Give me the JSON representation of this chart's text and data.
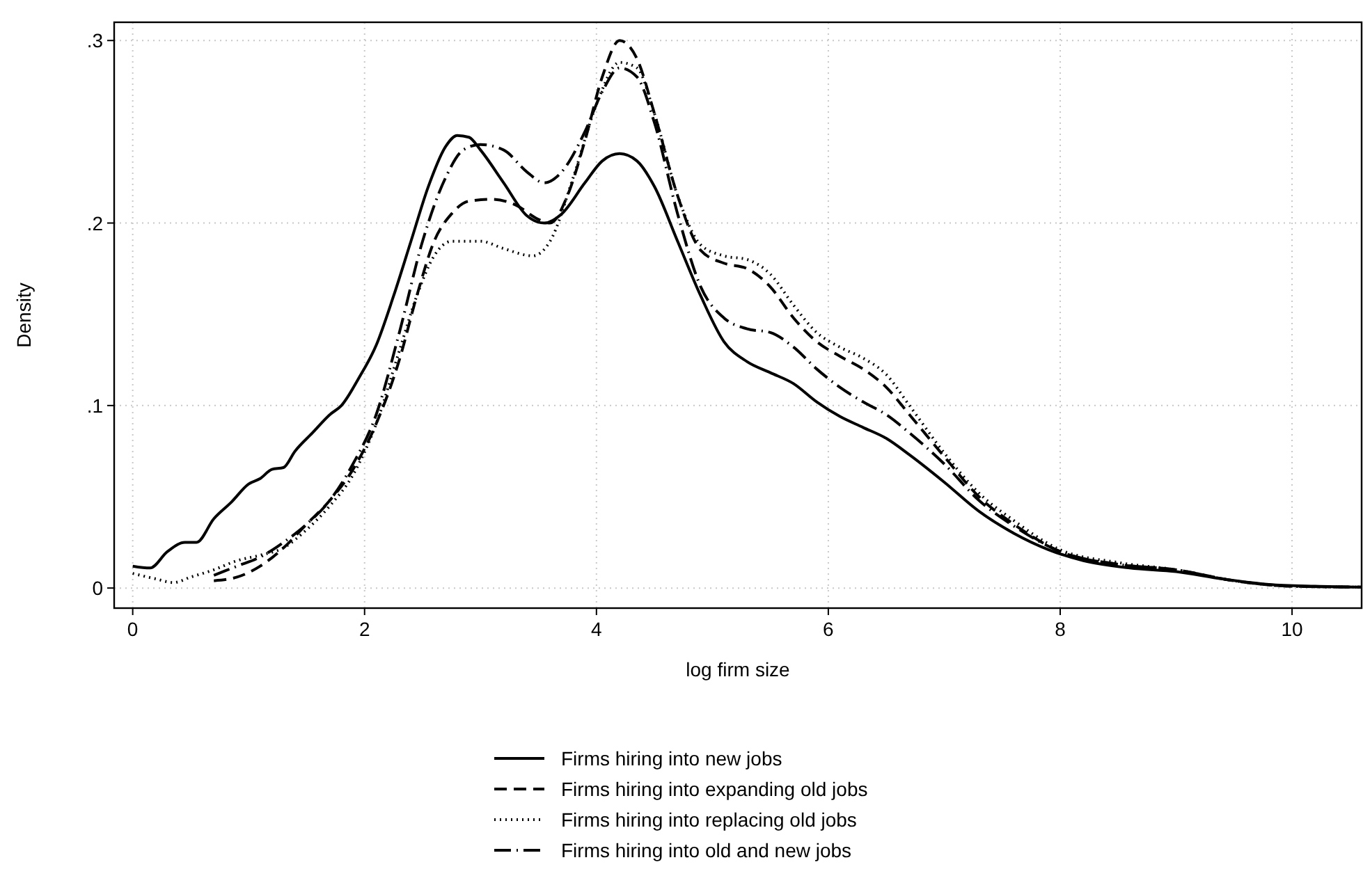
{
  "chart_data": {
    "type": "line",
    "xlabel": "log firm size",
    "ylabel": "Density",
    "xlim": [
      -0.16,
      10.6
    ],
    "ylim": [
      -0.011,
      0.31
    ],
    "xticks": [
      0,
      2,
      4,
      6,
      8,
      10
    ],
    "yticks": [
      0,
      {
        "value": 0.1,
        "label": ".1"
      },
      {
        "value": 0.2,
        "label": ".2"
      },
      {
        "value": 0.3,
        "label": ".3"
      }
    ],
    "grid": true,
    "legend": "bottom",
    "series": [
      {
        "name": "Firms hiring into new jobs",
        "color": "#000000",
        "line_style": "solid",
        "x": [
          0,
          0.15,
          0.3,
          0.45,
          0.55,
          0.7,
          0.85,
          1.0,
          1.1,
          1.2,
          1.3,
          1.4,
          1.55,
          1.7,
          1.8,
          1.95,
          2.1,
          2.25,
          2.4,
          2.55,
          2.7,
          2.8,
          2.9,
          3.0,
          3.2,
          3.4,
          3.55,
          3.7,
          3.9,
          4.05,
          4.2,
          4.35,
          4.5,
          4.7,
          4.9,
          5.1,
          5.3,
          5.5,
          5.7,
          5.9,
          6.1,
          6.3,
          6.5,
          6.7,
          7.0,
          7.3,
          7.6,
          7.9,
          8.2,
          8.6,
          9.0,
          9.4,
          9.8,
          10.2,
          10.6
        ],
        "values": [
          0.012,
          0.011,
          0.02,
          0.025,
          0.025,
          0.038,
          0.047,
          0.057,
          0.06,
          0.065,
          0.066,
          0.075,
          0.085,
          0.095,
          0.1,
          0.115,
          0.133,
          0.16,
          0.19,
          0.22,
          0.242,
          0.248,
          0.247,
          0.24,
          0.222,
          0.204,
          0.2,
          0.205,
          0.222,
          0.234,
          0.238,
          0.234,
          0.22,
          0.19,
          0.16,
          0.135,
          0.124,
          0.118,
          0.112,
          0.102,
          0.094,
          0.088,
          0.082,
          0.073,
          0.058,
          0.042,
          0.03,
          0.021,
          0.015,
          0.011,
          0.009,
          0.005,
          0.002,
          0.001,
          0.0005
        ]
      },
      {
        "name": "Firms hiring into expanding old jobs",
        "color": "#000000",
        "line_style": "dashed",
        "x": [
          0.7,
          0.9,
          1.1,
          1.3,
          1.5,
          1.7,
          1.9,
          2.1,
          2.3,
          2.45,
          2.6,
          2.75,
          2.9,
          3.1,
          3.3,
          3.5,
          3.6,
          3.75,
          3.9,
          4.05,
          4.2,
          4.35,
          4.5,
          4.7,
          4.9,
          5.1,
          5.3,
          5.5,
          5.7,
          5.9,
          6.1,
          6.3,
          6.5,
          6.7,
          7.0,
          7.3,
          7.6,
          8.0,
          8.5,
          9.0,
          9.5,
          10.0,
          10.6
        ],
        "values": [
          0.004,
          0.006,
          0.012,
          0.022,
          0.035,
          0.048,
          0.065,
          0.09,
          0.125,
          0.16,
          0.19,
          0.205,
          0.212,
          0.213,
          0.21,
          0.202,
          0.2,
          0.215,
          0.245,
          0.28,
          0.3,
          0.29,
          0.26,
          0.215,
          0.185,
          0.178,
          0.175,
          0.165,
          0.148,
          0.135,
          0.127,
          0.12,
          0.11,
          0.095,
          0.072,
          0.05,
          0.035,
          0.02,
          0.013,
          0.01,
          0.004,
          0.001,
          0.0005
        ]
      },
      {
        "name": "Firms hiring into replacing old jobs",
        "color": "#000000",
        "line_style": "dotted",
        "x": [
          0,
          0.2,
          0.35,
          0.5,
          0.7,
          0.9,
          1.1,
          1.3,
          1.5,
          1.7,
          1.9,
          2.1,
          2.3,
          2.45,
          2.6,
          2.75,
          3.0,
          3.2,
          3.45,
          3.6,
          3.8,
          4.0,
          4.2,
          4.35,
          4.5,
          4.7,
          4.9,
          5.1,
          5.3,
          5.5,
          5.7,
          5.9,
          6.1,
          6.3,
          6.5,
          6.7,
          7.0,
          7.3,
          7.6,
          8.0,
          8.5,
          9.0,
          9.5,
          10.0,
          10.6
        ],
        "values": [
          0.008,
          0.005,
          0.003,
          0.006,
          0.01,
          0.015,
          0.018,
          0.022,
          0.032,
          0.045,
          0.062,
          0.09,
          0.13,
          0.16,
          0.182,
          0.19,
          0.19,
          0.186,
          0.182,
          0.19,
          0.225,
          0.265,
          0.288,
          0.285,
          0.26,
          0.215,
          0.188,
          0.182,
          0.18,
          0.172,
          0.155,
          0.14,
          0.132,
          0.126,
          0.117,
          0.1,
          0.074,
          0.052,
          0.037,
          0.021,
          0.014,
          0.01,
          0.004,
          0.001,
          0.0005
        ]
      },
      {
        "name": "Firms hiring into old and new jobs",
        "color": "#000000",
        "line_style": "dashdot",
        "x": [
          0.7,
          0.9,
          1.1,
          1.3,
          1.5,
          1.7,
          1.9,
          2.1,
          2.3,
          2.5,
          2.7,
          2.85,
          3.0,
          3.2,
          3.4,
          3.55,
          3.7,
          3.9,
          4.05,
          4.2,
          4.35,
          4.5,
          4.7,
          4.9,
          5.1,
          5.3,
          5.5,
          5.7,
          5.9,
          6.1,
          6.3,
          6.5,
          6.7,
          7.0,
          7.3,
          7.6,
          8.0,
          8.5,
          9.0,
          9.5,
          10.0,
          10.6
        ],
        "values": [
          0.007,
          0.012,
          0.017,
          0.025,
          0.035,
          0.048,
          0.068,
          0.095,
          0.14,
          0.19,
          0.225,
          0.24,
          0.243,
          0.24,
          0.228,
          0.222,
          0.228,
          0.25,
          0.272,
          0.285,
          0.28,
          0.255,
          0.205,
          0.165,
          0.148,
          0.142,
          0.14,
          0.132,
          0.12,
          0.11,
          0.102,
          0.095,
          0.085,
          0.068,
          0.048,
          0.034,
          0.02,
          0.013,
          0.01,
          0.004,
          0.001,
          0.0005
        ]
      }
    ]
  }
}
